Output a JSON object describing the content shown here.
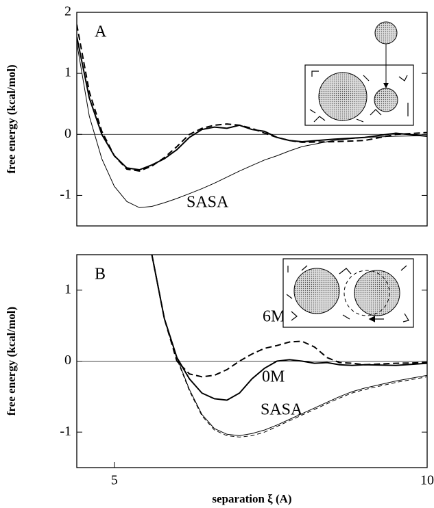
{
  "chart_data": [
    {
      "type": "line",
      "panel_label": "A",
      "ylabel": "free energy (kcal/mol)",
      "xlim": [
        4.4,
        10
      ],
      "ylim": [
        -1.5,
        2
      ],
      "yticks": [
        -1,
        0,
        1,
        2
      ],
      "zero_line": true,
      "annotations": [
        "SASA"
      ],
      "x": [
        4.4,
        4.6,
        4.8,
        5.0,
        5.2,
        5.4,
        5.6,
        5.8,
        6.0,
        6.2,
        6.4,
        6.6,
        6.8,
        7.0,
        7.2,
        7.4,
        7.6,
        7.8,
        8.0,
        8.5,
        9.0,
        9.5,
        10
      ],
      "series": [
        {
          "color": "#000000",
          "width": 1,
          "dashed": false,
          "values": [
            1.5,
            0.3,
            -0.4,
            -0.85,
            -1.1,
            -1.2,
            -1.18,
            -1.12,
            -1.05,
            -0.97,
            -0.89,
            -0.8,
            -0.7,
            -0.6,
            -0.51,
            -0.42,
            -0.35,
            -0.27,
            -0.2,
            -0.1,
            -0.05,
            -0.03,
            -0.02
          ]
        },
        {
          "color": "#000000",
          "width": 2,
          "dashed": false,
          "values": [
            1.6,
            0.6,
            0.0,
            -0.35,
            -0.55,
            -0.58,
            -0.5,
            -0.4,
            -0.25,
            -0.05,
            0.08,
            0.12,
            0.1,
            0.15,
            0.08,
            0.05,
            -0.05,
            -0.1,
            -0.12,
            -0.08,
            -0.05,
            0.02,
            -0.03
          ]
        },
        {
          "color": "#000000",
          "width": 2,
          "dashed": true,
          "values": [
            1.8,
            0.7,
            0.05,
            -0.35,
            -0.57,
            -0.6,
            -0.52,
            -0.38,
            -0.2,
            0.0,
            0.1,
            0.15,
            0.17,
            0.15,
            0.1,
            0.02,
            -0.05,
            -0.1,
            -0.13,
            -0.12,
            -0.1,
            0.0,
            0.03
          ]
        }
      ]
    },
    {
      "type": "line",
      "panel_label": "B",
      "ylabel": "free energy (kcal/mol)",
      "xlabel": "separation ξ (A)",
      "xlim": [
        4.4,
        10
      ],
      "ylim": [
        -1.5,
        1.5
      ],
      "xticks": [
        5,
        10
      ],
      "yticks": [
        -1,
        0,
        1
      ],
      "zero_line": true,
      "annotations": [
        "6M",
        "0M",
        "SASA"
      ],
      "x": [
        5.6,
        5.8,
        6.0,
        6.2,
        6.4,
        6.6,
        6.8,
        7.0,
        7.2,
        7.4,
        7.6,
        7.8,
        8.0,
        8.2,
        8.4,
        8.6,
        8.8,
        9.0,
        9.5,
        10
      ],
      "series": [
        {
          "color": "#000000",
          "width": 1,
          "dashed": false,
          "values": [
            1.5,
            0.6,
            0.05,
            -0.4,
            -0.75,
            -0.95,
            -1.03,
            -1.05,
            -1.02,
            -0.97,
            -0.9,
            -0.82,
            -0.74,
            -0.66,
            -0.58,
            -0.5,
            -0.43,
            -0.38,
            -0.28,
            -0.2
          ]
        },
        {
          "color": "#000000",
          "width": 1,
          "dashed": true,
          "values": [
            1.5,
            0.6,
            0.03,
            -0.42,
            -0.77,
            -0.97,
            -1.05,
            -1.07,
            -1.05,
            -1.0,
            -0.92,
            -0.84,
            -0.76,
            -0.68,
            -0.6,
            -0.52,
            -0.45,
            -0.4,
            -0.3,
            -0.22
          ]
        },
        {
          "color": "#000000",
          "width": 2,
          "dashed": false,
          "values": [
            1.5,
            0.6,
            0.05,
            -0.25,
            -0.45,
            -0.53,
            -0.55,
            -0.45,
            -0.25,
            -0.1,
            0.0,
            0.02,
            0.0,
            -0.03,
            -0.02,
            -0.05,
            -0.06,
            -0.05,
            -0.06,
            -0.03
          ]
        },
        {
          "color": "#000000",
          "width": 2,
          "dashed": true,
          "values": [
            1.5,
            0.6,
            0.0,
            -0.18,
            -0.22,
            -0.2,
            -0.12,
            0.0,
            0.1,
            0.18,
            0.22,
            0.27,
            0.28,
            0.2,
            0.05,
            -0.02,
            -0.03,
            -0.05,
            -0.03,
            -0.02
          ]
        }
      ]
    }
  ]
}
